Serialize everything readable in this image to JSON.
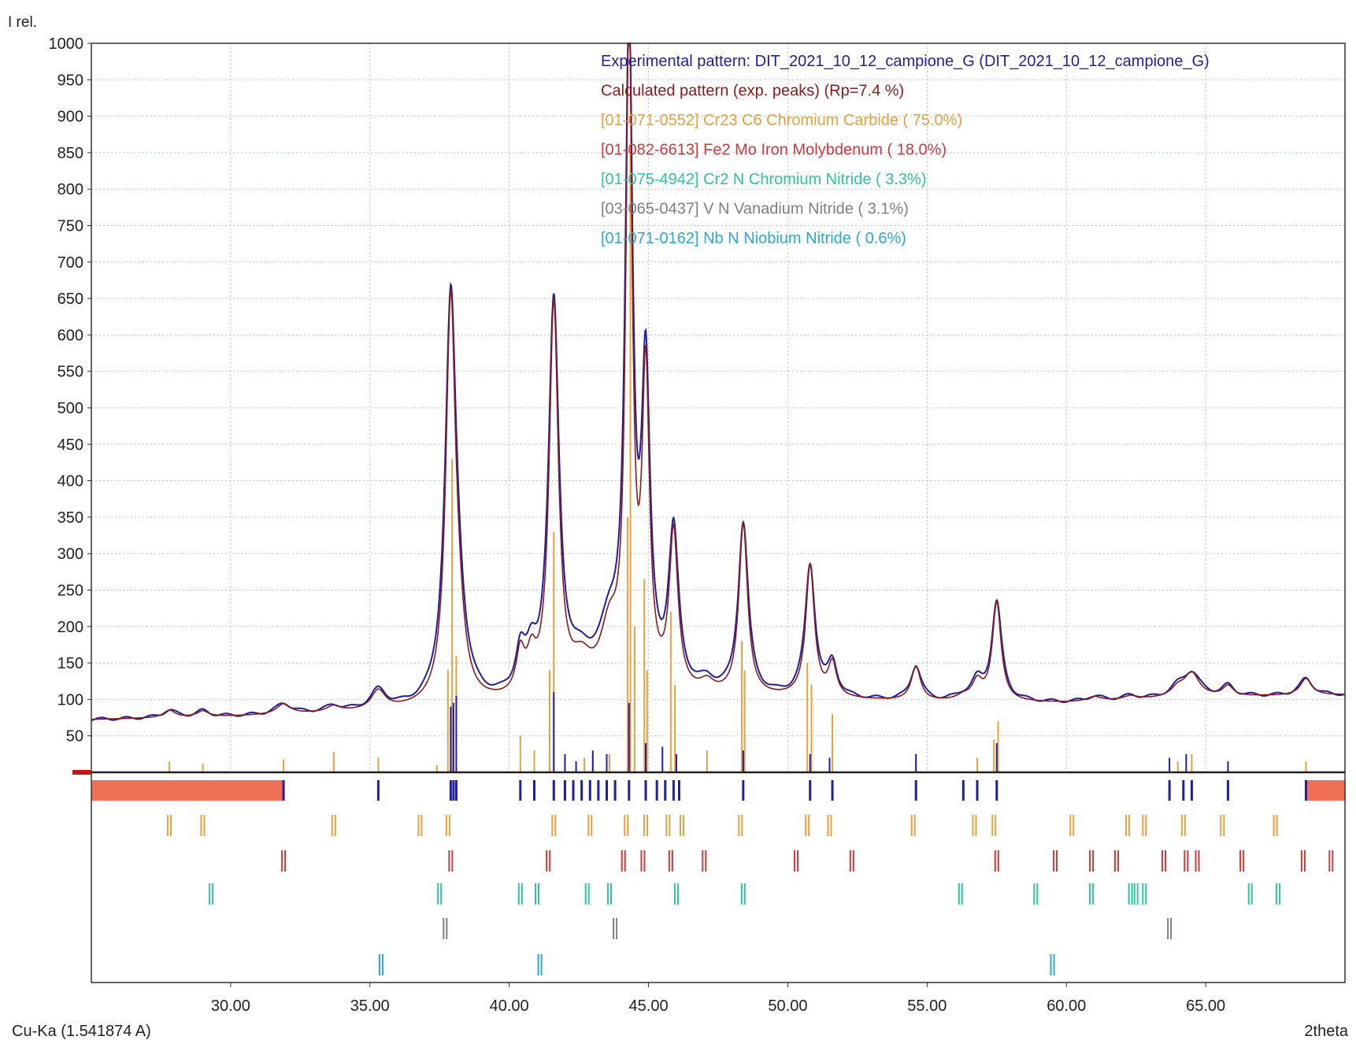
{
  "window": {
    "y_axis_label": "I rel.",
    "x_axis_label": "2theta",
    "wavelength_label": "Cu-Ka (1.541874 A)"
  },
  "colors": {
    "experimental": "#1f1fa0",
    "calculated": "#8b1a1a",
    "cr23c6": "#e8a040",
    "fe2mo": "#d0393a",
    "cr2n": "#2ec4a0",
    "vn": "#808080",
    "nbn": "#2aa8d8",
    "unmatched": "#f07055"
  },
  "chart_data": {
    "type": "line",
    "title": "",
    "xlabel": "2theta",
    "ylabel": "I rel.",
    "xlim": [
      25,
      70
    ],
    "ylim": [
      0,
      1000
    ],
    "x_ticks": [
      "30.00",
      "35.00",
      "40.00",
      "45.00",
      "50.00",
      "55.00",
      "60.00",
      "65.00"
    ],
    "y_ticks": [
      "50",
      "100",
      "150",
      "200",
      "250",
      "300",
      "350",
      "400",
      "450",
      "500",
      "550",
      "600",
      "650",
      "700",
      "750",
      "800",
      "850",
      "900",
      "950",
      "1000"
    ],
    "grid": true,
    "legend_position": "top-right",
    "legend": [
      {
        "key": "experimental",
        "label": "Experimental pattern: DIT_2021_10_12_campione_G (DIT_2021_10_12_campione_G)"
      },
      {
        "key": "calculated",
        "label": "Calculated pattern (exp. peaks) (Rp=7.4 %)"
      },
      {
        "key": "cr23c6",
        "label": "[01-071-0552] Cr23 C6 Chromium Carbide ( 75.0%)"
      },
      {
        "key": "fe2mo",
        "label": "[01-082-6613] Fe2 Mo Iron Molybdenum ( 18.0%)"
      },
      {
        "key": "cr2n",
        "label": "[01-075-4942] Cr2 N Chromium Nitride (  3.3%)"
      },
      {
        "key": "vn",
        "label": "[03-065-0437] V N Vanadium Nitride (  3.1%)"
      },
      {
        "key": "nbn",
        "label": "[01-071-0162] Nb N Niobium Nitride (  0.6%)"
      }
    ],
    "background": [
      [
        25,
        72
      ],
      [
        30,
        76
      ],
      [
        35,
        82
      ],
      [
        40,
        92
      ],
      [
        45,
        100
      ],
      [
        50,
        100
      ],
      [
        55,
        96
      ],
      [
        60,
        95
      ],
      [
        65,
        103
      ],
      [
        70,
        106
      ]
    ],
    "peaks": [
      {
        "x": 27.8,
        "h": 10,
        "w": 0.25
      },
      {
        "x": 29.0,
        "h": 8,
        "w": 0.25
      },
      {
        "x": 31.9,
        "h": 14,
        "w": 0.3
      },
      {
        "x": 33.7,
        "h": 8,
        "w": 0.3
      },
      {
        "x": 35.3,
        "h": 26,
        "w": 0.3
      },
      {
        "x": 37.9,
        "h": 545,
        "w": 0.21
      },
      {
        "x": 38.2,
        "h": 60,
        "w": 0.25
      },
      {
        "x": 40.4,
        "h": 55,
        "w": 0.18
      },
      {
        "x": 40.8,
        "h": 45,
        "w": 0.2
      },
      {
        "x": 41.6,
        "h": 535,
        "w": 0.2
      },
      {
        "x": 42.6,
        "h": 40,
        "w": 0.45
      },
      {
        "x": 43.6,
        "h": 80,
        "w": 0.4
      },
      {
        "x": 44.3,
        "h": 900,
        "w": 0.14
      },
      {
        "x": 44.9,
        "h": 420,
        "w": 0.16
      },
      {
        "x": 45.9,
        "h": 215,
        "w": 0.19
      },
      {
        "x": 47.1,
        "h": 15,
        "w": 0.3
      },
      {
        "x": 48.4,
        "h": 235,
        "w": 0.19
      },
      {
        "x": 50.8,
        "h": 180,
        "w": 0.19
      },
      {
        "x": 51.6,
        "h": 45,
        "w": 0.18
      },
      {
        "x": 54.6,
        "h": 47,
        "w": 0.2
      },
      {
        "x": 56.3,
        "h": 6,
        "w": 0.3
      },
      {
        "x": 56.8,
        "h": 25,
        "w": 0.22
      },
      {
        "x": 57.5,
        "h": 135,
        "w": 0.19
      },
      {
        "x": 61.0,
        "h": 6,
        "w": 0.3
      },
      {
        "x": 62.3,
        "h": 5,
        "w": 0.3
      },
      {
        "x": 64.0,
        "h": 12,
        "w": 0.3
      },
      {
        "x": 64.5,
        "h": 32,
        "w": 0.32
      },
      {
        "x": 65.8,
        "h": 14,
        "w": 0.22
      },
      {
        "x": 68.6,
        "h": 23,
        "w": 0.25
      }
    ],
    "calc_sticks": [
      [
        27.8,
        15
      ],
      [
        29.0,
        12
      ],
      [
        31.9,
        18
      ],
      [
        33.7,
        28
      ],
      [
        35.3,
        20
      ],
      [
        37.4,
        10
      ],
      [
        37.8,
        140
      ],
      [
        37.95,
        430
      ],
      [
        38.1,
        160
      ],
      [
        40.4,
        50
      ],
      [
        40.9,
        30
      ],
      [
        41.45,
        140
      ],
      [
        41.6,
        330
      ],
      [
        42.7,
        20
      ],
      [
        43.0,
        22
      ],
      [
        43.6,
        25
      ],
      [
        44.25,
        350
      ],
      [
        44.35,
        850
      ],
      [
        44.5,
        200
      ],
      [
        44.85,
        265
      ],
      [
        44.95,
        140
      ],
      [
        45.8,
        220
      ],
      [
        45.95,
        120
      ],
      [
        47.1,
        30
      ],
      [
        48.35,
        180
      ],
      [
        48.45,
        140
      ],
      [
        50.7,
        150
      ],
      [
        50.85,
        120
      ],
      [
        51.6,
        80
      ],
      [
        54.6,
        25
      ],
      [
        56.8,
        20
      ],
      [
        57.4,
        45
      ],
      [
        57.55,
        70
      ],
      [
        64.0,
        15
      ],
      [
        64.5,
        25
      ],
      [
        68.6,
        15
      ]
    ],
    "exp_sticks": [
      [
        37.9,
        90
      ],
      [
        38.0,
        95
      ],
      [
        38.1,
        105
      ],
      [
        41.6,
        110
      ],
      [
        42.0,
        25
      ],
      [
        42.4,
        15
      ],
      [
        43.0,
        30
      ],
      [
        43.5,
        25
      ],
      [
        44.3,
        95
      ],
      [
        44.9,
        40
      ],
      [
        45.5,
        35
      ],
      [
        46.0,
        25
      ],
      [
        48.4,
        30
      ],
      [
        50.8,
        25
      ],
      [
        51.5,
        20
      ],
      [
        54.6,
        25
      ],
      [
        57.5,
        40
      ],
      [
        63.7,
        20
      ],
      [
        64.3,
        25
      ],
      [
        65.8,
        15
      ]
    ],
    "phases": [
      {
        "key": "cr23c6",
        "name": "Cr23 C6",
        "sticks": [
          27.8,
          29.0,
          33.7,
          36.8,
          37.8,
          41.6,
          42.9,
          44.2,
          44.9,
          45.7,
          46.2,
          48.3,
          50.7,
          51.5,
          54.5,
          56.7,
          57.4,
          60.2,
          62.2,
          62.8,
          64.2,
          65.6,
          67.5
        ]
      },
      {
        "key": "fe2mo",
        "name": "Fe2 Mo",
        "sticks": [
          31.9,
          37.9,
          41.4,
          44.1,
          44.8,
          45.8,
          47.0,
          50.3,
          52.3,
          57.5,
          59.6,
          60.9,
          61.8,
          63.5,
          64.3,
          64.7,
          66.3,
          68.5,
          69.5
        ]
      },
      {
        "key": "cr2n",
        "name": "Cr2 N",
        "sticks": [
          29.3,
          37.5,
          40.4,
          41.0,
          42.8,
          43.6,
          46.0,
          48.4,
          56.2,
          58.9,
          60.9,
          62.3,
          62.5,
          62.8,
          66.6,
          67.6
        ]
      },
      {
        "key": "vn",
        "name": "V N",
        "sticks": [
          37.7,
          43.8,
          63.7
        ]
      },
      {
        "key": "nbn",
        "name": "Nb N",
        "sticks": [
          35.4,
          41.1,
          59.5
        ]
      }
    ],
    "unmatched_ranges": [
      [
        25,
        31.9
      ],
      [
        68.6,
        70
      ]
    ],
    "reference_ticks": [
      31.9,
      35.3,
      37.9,
      38.0,
      38.1,
      40.4,
      40.9,
      41.6,
      42.0,
      42.3,
      42.6,
      42.9,
      43.2,
      43.5,
      43.8,
      44.3,
      44.9,
      45.3,
      45.6,
      45.9,
      46.1,
      48.4,
      50.8,
      51.6,
      54.6,
      56.3,
      56.8,
      57.5,
      63.7,
      64.2,
      64.5,
      65.8,
      68.6
    ]
  }
}
